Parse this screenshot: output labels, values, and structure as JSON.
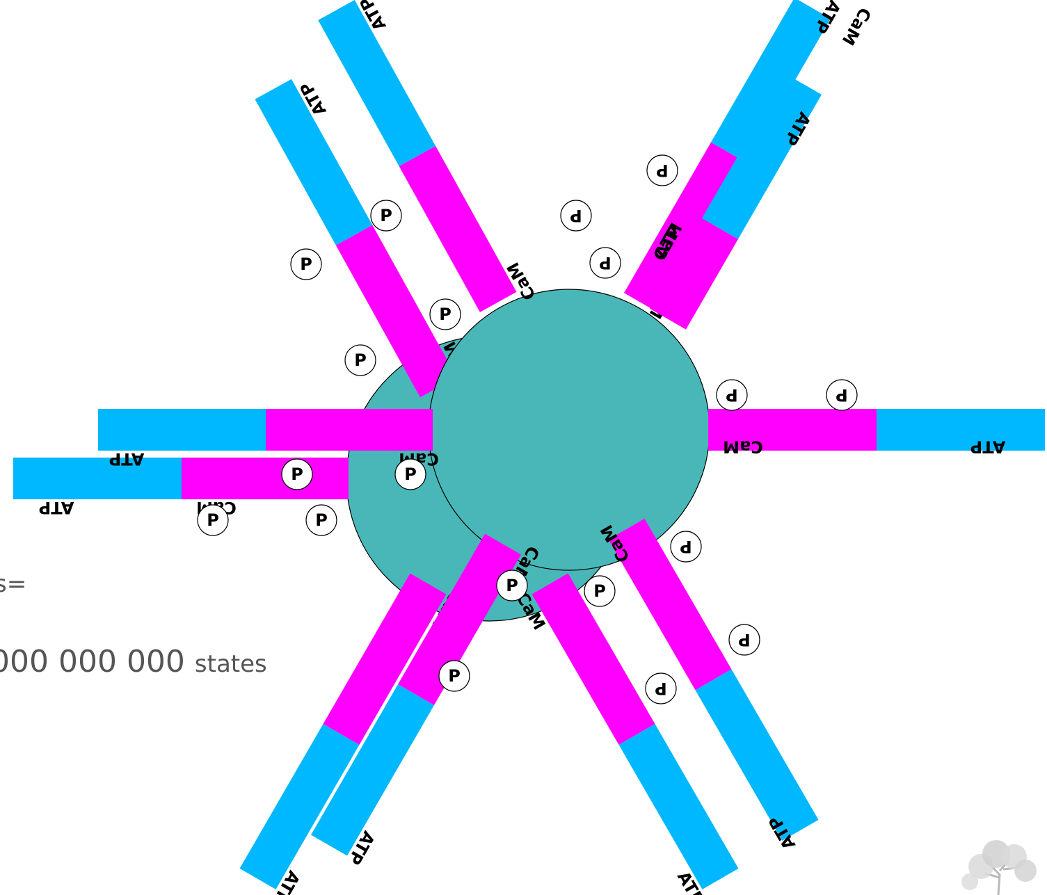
{
  "background_text": {
    "states_prefix": "s=",
    "states_value": "000 000 000",
    "states_unit": "states"
  },
  "labels": {
    "atp": "ATP",
    "cam": "CaM",
    "phosphate": "P"
  },
  "colors": {
    "atp_domain": "#00b8ff",
    "cam_domain": "#ff00ff",
    "hub": "#49b7b7",
    "phosphate_fill": "#ffffff",
    "outline": "#000000"
  },
  "icons": {
    "corner_logo": "tree-logo-icon"
  }
}
